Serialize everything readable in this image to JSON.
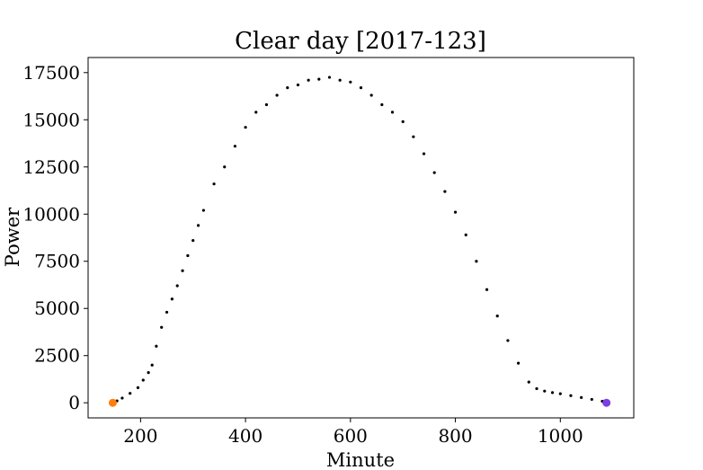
{
  "chart_data": {
    "type": "scatter",
    "title": "Clear day [2017-123]",
    "xlabel": "Minute",
    "ylabel": "Power",
    "xlim": [
      100,
      1140
    ],
    "ylim": [
      -800,
      18300
    ],
    "xticks": [
      200,
      400,
      600,
      800,
      1000
    ],
    "yticks": [
      0,
      2500,
      5000,
      7500,
      10000,
      12500,
      15000,
      17500
    ],
    "grid": false,
    "legend": "none",
    "series": [
      {
        "color": "#000000",
        "marker": "dot",
        "x": [
          155,
          165,
          180,
          195,
          205,
          215,
          222,
          230,
          240,
          250,
          260,
          270,
          280,
          290,
          300,
          310,
          320,
          340,
          360,
          380,
          400,
          420,
          440,
          460,
          480,
          500,
          520,
          540,
          560,
          580,
          600,
          620,
          640,
          660,
          680,
          700,
          720,
          740,
          760,
          780,
          800,
          820,
          840,
          860,
          880,
          900,
          920,
          940,
          955,
          970,
          985,
          1000,
          1020,
          1040,
          1060,
          1080
        ],
        "y": [
          100,
          250,
          500,
          800,
          1200,
          1600,
          2000,
          3000,
          4000,
          4800,
          5500,
          6200,
          7000,
          7800,
          8600,
          9400,
          10200,
          11600,
          12500,
          13600,
          14600,
          15400,
          15800,
          16300,
          16700,
          16850,
          17100,
          17150,
          17250,
          17100,
          17000,
          16700,
          16300,
          15800,
          15400,
          14900,
          14100,
          13200,
          12200,
          11200,
          10100,
          8900,
          7500,
          6000,
          4600,
          3300,
          2100,
          1100,
          750,
          620,
          540,
          480,
          380,
          280,
          180,
          80
        ]
      }
    ],
    "markers": [
      {
        "x": 147,
        "y": 0,
        "color": "#ff7f0e"
      },
      {
        "x": 1088,
        "y": 0,
        "color": "#7b3fe4"
      }
    ]
  }
}
